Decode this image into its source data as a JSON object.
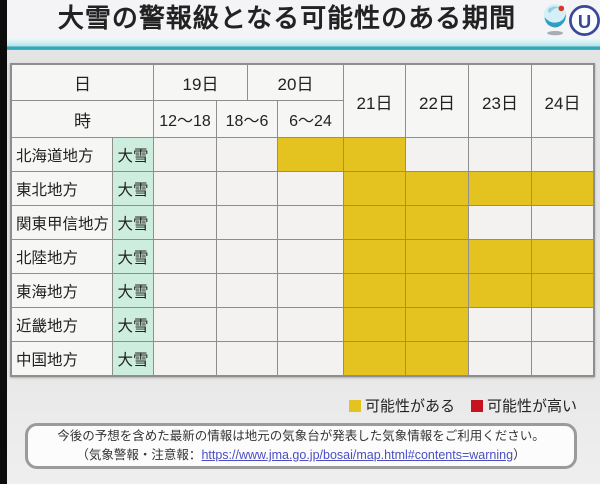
{
  "title": "大雪の警報級となる可能性のある期間",
  "icons": {
    "jma_logo": "weather-agency-swirl-logo",
    "broadcaster_letter": "U"
  },
  "table": {
    "header": {
      "day_label": "日",
      "hour_label": "時",
      "day_groups": [
        "19日",
        "20日"
      ],
      "hour_ranges": [
        "12〜18",
        "18〜6",
        "6〜24"
      ],
      "days": [
        "21日",
        "22日",
        "23日",
        "24日"
      ],
      "cell_columns": [
        "12〜18",
        "18〜6",
        "6〜24",
        "21日",
        "22日",
        "23日",
        "24日"
      ]
    },
    "rows": [
      {
        "region": "北海道地方",
        "type": "大雪",
        "cells": [
          0,
          0,
          1,
          1,
          0,
          0,
          0
        ]
      },
      {
        "region": "東北地方",
        "type": "大雪",
        "cells": [
          0,
          0,
          0,
          1,
          1,
          1,
          1
        ]
      },
      {
        "region": "関東甲信地方",
        "type": "大雪",
        "cells": [
          0,
          0,
          0,
          1,
          1,
          0,
          0
        ]
      },
      {
        "region": "北陸地方",
        "type": "大雪",
        "cells": [
          0,
          0,
          0,
          1,
          1,
          1,
          1
        ]
      },
      {
        "region": "東海地方",
        "type": "大雪",
        "cells": [
          0,
          0,
          0,
          1,
          1,
          1,
          1
        ]
      },
      {
        "region": "近畿地方",
        "type": "大雪",
        "cells": [
          0,
          0,
          0,
          1,
          1,
          0,
          0
        ]
      },
      {
        "region": "中国地方",
        "type": "大雪",
        "cells": [
          0,
          0,
          0,
          1,
          1,
          0,
          0
        ]
      }
    ]
  },
  "legend": [
    {
      "label": "可能性がある",
      "color": "#e4c320"
    },
    {
      "label": "可能性が高い",
      "color": "#c6131f"
    }
  ],
  "note": {
    "line1": "今後の予想を含めた最新の情報は地元の気象台が発表した気象情報をご利用ください。",
    "line2_prefix": "（気象警報・注意報：",
    "link_text": "https://www.jma.go.jp/bosai/map.html#contents=warning",
    "line2_suffix": "）"
  },
  "colors": {
    "accent_teal": "#2fa9b5",
    "cell_possible": "#e4c320",
    "cell_likely": "#c6131f",
    "warning_type_bg": "#cdeede",
    "link": "#4a4ec4"
  }
}
